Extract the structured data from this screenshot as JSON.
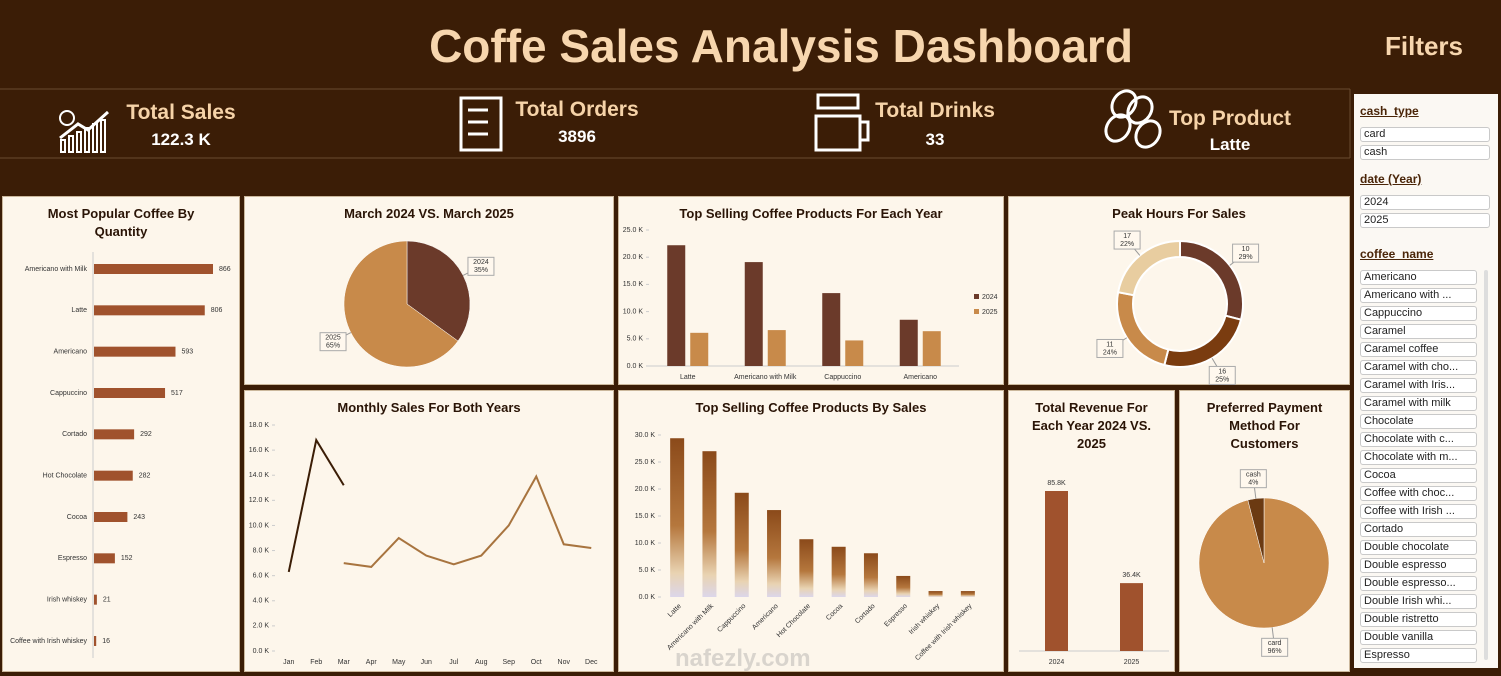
{
  "header": {
    "title": "Coffe Sales Analysis Dashboard",
    "filters_title": "Filters"
  },
  "kpis": [
    {
      "label": "Total Sales",
      "value": "122.3 K"
    },
    {
      "label": "Total Orders",
      "value": 3896
    },
    {
      "label": "Total Drinks",
      "value": 33
    },
    {
      "label": "Top Product",
      "value": "Latte"
    }
  ],
  "filters": [
    {
      "field": "cash_type",
      "items": [
        "card",
        "cash"
      ]
    },
    {
      "field": "date (Year)",
      "items": [
        "2024",
        "2025"
      ]
    },
    {
      "field": "coffee_name",
      "items": [
        "Americano",
        "Americano with ...",
        "Cappuccino",
        "Caramel",
        "Caramel coffee",
        "Caramel with cho...",
        "Caramel with Iris...",
        "Caramel with milk",
        "Chocolate",
        "Chocolate with c...",
        "Chocolate with m...",
        "Cocoa",
        "Coffee with choc...",
        "Coffee with Irish ...",
        "Cortado",
        "Double chocolate",
        "Double espresso",
        "Double espresso...",
        "Double Irish whi...",
        "Double ristretto",
        "Double vanilla",
        "Espresso"
      ]
    }
  ],
  "watermark": "nafezly.com",
  "chart_data": [
    {
      "type": "barh",
      "title": "Most Popular Coffee By Quantity",
      "categories": [
        "Americano with Milk",
        "Latte",
        "Americano",
        "Cappuccino",
        "Cortado",
        "Hot Chocolate",
        "Cocoa",
        "Espresso",
        "Irish whiskey",
        "Coffee with Irish whiskey"
      ],
      "values": [
        866,
        806,
        593,
        517,
        292,
        282,
        243,
        152,
        21,
        16
      ],
      "color": "#a0522d"
    },
    {
      "type": "pie",
      "title": "March 2024 VS. March 2025",
      "categories": [
        "2024",
        "2025"
      ],
      "values": [
        35,
        65
      ],
      "value_labels": [
        "35%",
        "65%"
      ],
      "colors": [
        "#6b3a2a",
        "#c88a4a"
      ]
    },
    {
      "type": "bar",
      "title": "Top Selling Coffee Products For Each Year",
      "categories": [
        "Latte",
        "Americano with Milk",
        "Cappuccino",
        "Americano"
      ],
      "series": [
        {
          "name": "2024",
          "color": "#6b3a2a",
          "values": [
            22200,
            19100,
            13400,
            8500
          ]
        },
        {
          "name": "2025",
          "color": "#c88a4a",
          "values": [
            6100,
            6600,
            4700,
            6400
          ]
        }
      ],
      "ylim": [
        0,
        25000
      ],
      "yticks": [
        {
          "value": 0,
          "label": "0.0 K"
        },
        {
          "value": 5000,
          "label": "5.0 K"
        },
        {
          "value": 10000,
          "label": "10.0 K"
        },
        {
          "value": 15000,
          "label": "15.0 K"
        },
        {
          "value": 20000,
          "label": "20.0 K"
        },
        {
          "value": 25000,
          "label": "25.0 K"
        }
      ],
      "legend": "right"
    },
    {
      "type": "donut",
      "title": "Peak Hours For Sales",
      "categories": [
        "10",
        "16",
        "11",
        "17"
      ],
      "values": [
        29,
        25,
        24,
        22
      ],
      "value_labels": [
        "29%",
        "25%",
        "24%",
        "22%"
      ],
      "colors": [
        "#6b3a2a",
        "#7a3c10",
        "#c88a4a",
        "#e8cda0"
      ]
    },
    {
      "type": "line",
      "title": "Monthly Sales For Both Years",
      "categories": [
        "Jan",
        "Feb",
        "Mar",
        "Apr",
        "May",
        "Jun",
        "Jul",
        "Aug",
        "Sep",
        "Oct",
        "Nov",
        "Dec"
      ],
      "series": [
        {
          "color": "#3b1d06",
          "values": [
            6300,
            16800,
            13200,
            null,
            null,
            null,
            null,
            null,
            null,
            null,
            null,
            null
          ]
        },
        {
          "color": "#a8743f",
          "values": [
            null,
            null,
            7000,
            6700,
            9000,
            7600,
            6900,
            7600,
            10000,
            13900,
            8500,
            8200
          ]
        }
      ],
      "ylim": [
        0,
        18000
      ],
      "yticks": [
        {
          "value": 0,
          "label": "0.0 K"
        },
        {
          "value": 2000,
          "label": "2.0 K"
        },
        {
          "value": 4000,
          "label": "4.0 K"
        },
        {
          "value": 6000,
          "label": "6.0 K"
        },
        {
          "value": 8000,
          "label": "8.0 K"
        },
        {
          "value": 10000,
          "label": "10.0 K"
        },
        {
          "value": 12000,
          "label": "12.0 K"
        },
        {
          "value": 14000,
          "label": "14.0 K"
        },
        {
          "value": 16000,
          "label": "16.0 K"
        },
        {
          "value": 18000,
          "label": "18.0 K"
        }
      ]
    },
    {
      "type": "bar3d",
      "title": "Top Selling Coffee Products By Sales",
      "categories": [
        "Latte",
        "Americano with Milk",
        "Cappuccino",
        "Americano",
        "Hot Chocolate",
        "Cocoa",
        "Cortado",
        "Espresso",
        "Irish whiskey",
        "Coffee with Irish whiskey"
      ],
      "values": [
        29400,
        27000,
        19300,
        16100,
        10700,
        9300,
        8100,
        3900,
        1100,
        1100
      ],
      "color": "#8b4a1a",
      "ylim": [
        0,
        30000
      ],
      "yticks": [
        {
          "value": 0,
          "label": "0.0 K"
        },
        {
          "value": 5000,
          "label": "5.0 K"
        },
        {
          "value": 10000,
          "label": "10.0 K"
        },
        {
          "value": 15000,
          "label": "15.0 K"
        },
        {
          "value": 20000,
          "label": "20.0 K"
        },
        {
          "value": 25000,
          "label": "25.0 K"
        },
        {
          "value": 30000,
          "label": "30.0 K"
        }
      ]
    },
    {
      "type": "bar",
      "title": "Total Revenue For Each Year 2024 VS. 2025",
      "categories": [
        "2024",
        "2025"
      ],
      "values": [
        85.8,
        36.4
      ],
      "value_labels": [
        "85.8K",
        "36.4K"
      ],
      "color": "#a0522d"
    },
    {
      "type": "pie",
      "title": "Preferred Payment Method For Customers",
      "categories": [
        "card",
        "cash"
      ],
      "values": [
        96,
        4
      ],
      "value_labels": [
        "96%",
        "4%"
      ],
      "colors": [
        "#c88a4a",
        "#6b3a12"
      ]
    }
  ]
}
